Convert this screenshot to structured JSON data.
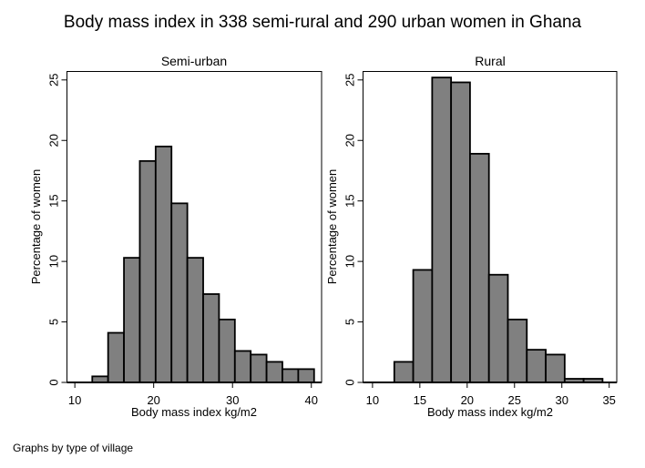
{
  "chart_data": {
    "type": "bar",
    "title": "Body mass index in 338 semi-rural and 290 urban women in Ghana",
    "note": "Graphs by type of village",
    "bar_color": "#808080",
    "panels": [
      {
        "subtitle": "Semi-urban",
        "xlabel": "Body mass index kg/m2",
        "ylabel": "Percentage of women",
        "xlim": [
          9.0,
          41.3
        ],
        "ylim": [
          0,
          25.7
        ],
        "xticks": [
          10,
          20,
          30,
          40
        ],
        "yticks": [
          0,
          5,
          10,
          15,
          20,
          25
        ],
        "bin_start": 10.2,
        "bin_width": 2.01,
        "values": [
          0,
          0.5,
          4.1,
          10.3,
          18.3,
          19.5,
          14.8,
          10.3,
          7.3,
          5.2,
          2.6,
          2.3,
          1.7,
          1.1,
          1.1
        ]
      },
      {
        "subtitle": "Rural",
        "xlabel": "Body mass index kg/m2",
        "ylabel": "Percentage of women",
        "xlim": [
          9.0,
          35.8
        ],
        "ylim": [
          0,
          25.7
        ],
        "xticks": [
          10,
          15,
          20,
          25,
          30,
          35
        ],
        "yticks": [
          0,
          5,
          10,
          15,
          20,
          25
        ],
        "bin_start": 10.3,
        "bin_width": 2.0,
        "values": [
          0,
          1.7,
          9.3,
          25.2,
          24.8,
          18.9,
          8.9,
          5.2,
          2.7,
          2.3,
          0.3,
          0.3
        ]
      }
    ]
  }
}
